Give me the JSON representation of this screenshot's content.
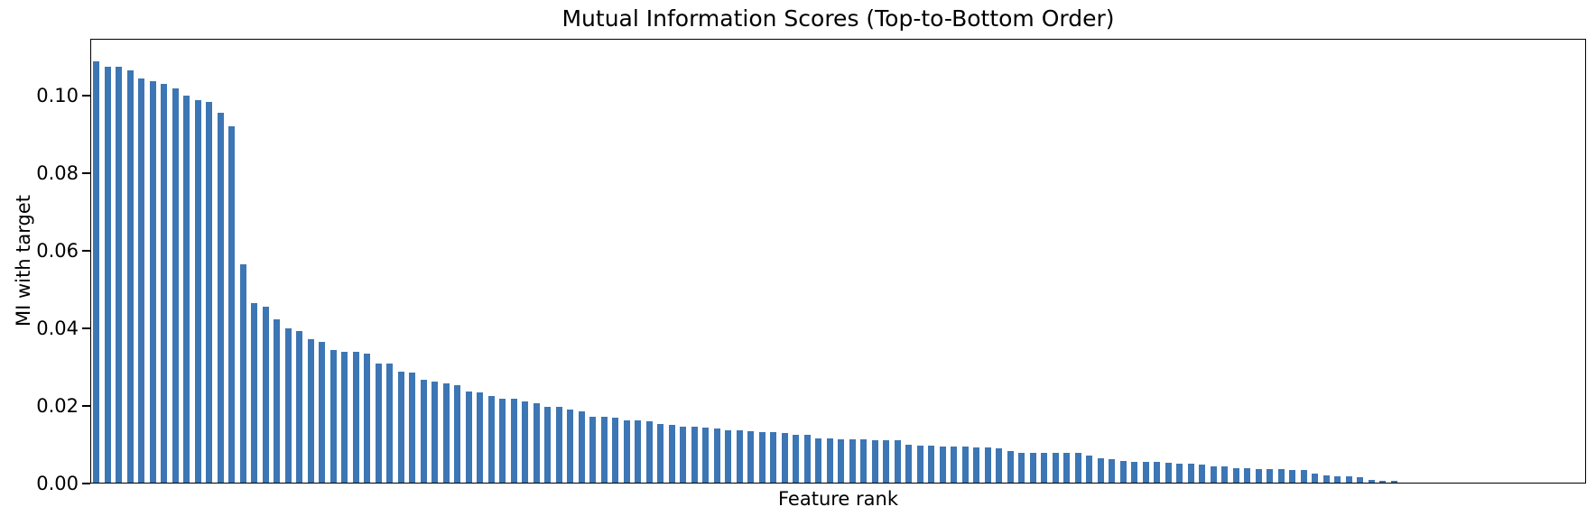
{
  "chart_data": {
    "type": "bar",
    "title": "Mutual Information Scores (Top-to-Bottom Order)",
    "xlabel": "Feature rank",
    "ylabel": "MI with target",
    "ylim": [
      0,
      0.1147
    ],
    "yticks": [
      0.0,
      0.02,
      0.04,
      0.06,
      0.08,
      0.1
    ],
    "ytick_labels": [
      "0.00",
      "0.02",
      "0.04",
      "0.06",
      "0.08",
      "0.10"
    ],
    "x_tick_labels_visible": false,
    "grid": false,
    "legend": false,
    "bar_color": "#3d76b4",
    "axis_color": "#000000",
    "background_color": "#ffffff",
    "n_bars": 132,
    "values": [
      0.1086,
      0.1072,
      0.1072,
      0.1063,
      0.1042,
      0.1036,
      0.1029,
      0.1016,
      0.0998,
      0.0987,
      0.0981,
      0.0954,
      0.0919,
      0.0563,
      0.0462,
      0.0454,
      0.0422,
      0.0398,
      0.0391,
      0.0369,
      0.0364,
      0.0343,
      0.0338,
      0.0338,
      0.0333,
      0.0308,
      0.0307,
      0.0287,
      0.0284,
      0.0266,
      0.026,
      0.0257,
      0.0251,
      0.0236,
      0.0233,
      0.0224,
      0.0216,
      0.0216,
      0.021,
      0.0204,
      0.0196,
      0.0196,
      0.0188,
      0.0184,
      0.0171,
      0.017,
      0.0167,
      0.0161,
      0.016,
      0.0158,
      0.0152,
      0.015,
      0.0144,
      0.0144,
      0.0143,
      0.0139,
      0.0136,
      0.0134,
      0.0133,
      0.0131,
      0.013,
      0.0129,
      0.0123,
      0.0123,
      0.0115,
      0.0115,
      0.0112,
      0.0112,
      0.0112,
      0.0109,
      0.0109,
      0.0109,
      0.0098,
      0.0096,
      0.0096,
      0.0094,
      0.0094,
      0.0094,
      0.0091,
      0.009,
      0.0088,
      0.0082,
      0.0078,
      0.0078,
      0.0077,
      0.0077,
      0.0076,
      0.0076,
      0.007,
      0.0062,
      0.0061,
      0.0057,
      0.0054,
      0.0053,
      0.0053,
      0.0051,
      0.005,
      0.005,
      0.0047,
      0.0042,
      0.0042,
      0.0038,
      0.0037,
      0.0036,
      0.0034,
      0.0034,
      0.0032,
      0.0032,
      0.0024,
      0.0019,
      0.0016,
      0.0016,
      0.0014,
      0.0006,
      0.0005,
      0.0004,
      0.0,
      0.0,
      0.0,
      0.0,
      0.0,
      0.0,
      0.0,
      0.0,
      0.0,
      0.0,
      0.0,
      0.0,
      0.0,
      0.0,
      0.0,
      0.0
    ]
  }
}
